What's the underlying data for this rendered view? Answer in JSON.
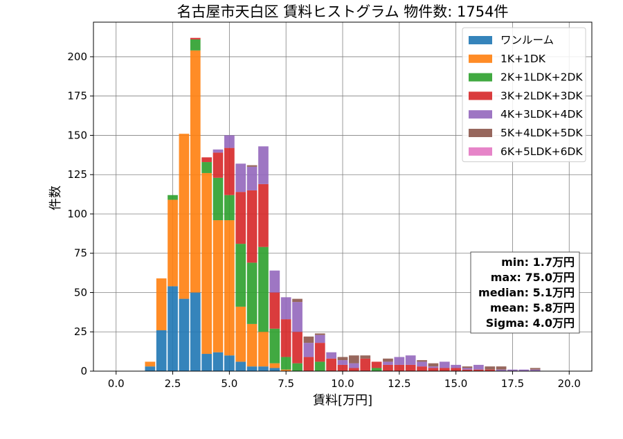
{
  "chart_data": {
    "type": "bar",
    "stacked": true,
    "title": "名古屋市天白区 賃料ヒストグラム 物件数: 1754件",
    "xlabel": "賃料[万円]",
    "ylabel": "件数",
    "xlim": [
      -1.0,
      21.0
    ],
    "ylim": [
      0,
      222
    ],
    "xticks": [
      "0.0",
      "2.5",
      "5.0",
      "7.5",
      "10.0",
      "12.5",
      "15.0",
      "17.5",
      "20.0"
    ],
    "yticks": [
      "0",
      "25",
      "50",
      "75",
      "100",
      "125",
      "150",
      "175",
      "200"
    ],
    "grid": true,
    "legend_position": "top-right",
    "bin_width": 0.5,
    "x": [
      1.5,
      2.0,
      2.5,
      3.0,
      3.5,
      4.0,
      4.5,
      5.0,
      5.5,
      6.0,
      6.5,
      7.0,
      7.5,
      8.0,
      8.5,
      9.0,
      9.5,
      10.0,
      10.5,
      11.0,
      11.5,
      12.0,
      12.5,
      13.0,
      13.5,
      14.0,
      14.5,
      15.0,
      15.5,
      16.0,
      16.5,
      17.0,
      17.5,
      18.0,
      18.5
    ],
    "series": [
      {
        "name": "ワンルーム",
        "color": "#1f77b4",
        "values": [
          3,
          26,
          54,
          46,
          50,
          11,
          12,
          10,
          6,
          3,
          3,
          2,
          0,
          0,
          0,
          0,
          0,
          0,
          0,
          0,
          0,
          0,
          0,
          0,
          0,
          0,
          0,
          0,
          0,
          0,
          0,
          0,
          0,
          0,
          0
        ]
      },
      {
        "name": "1K+1DK",
        "color": "#ff7f0e",
        "values": [
          3,
          33,
          55,
          105,
          154,
          115,
          84,
          86,
          35,
          27,
          22,
          3,
          1,
          0,
          0,
          0,
          0,
          0,
          0,
          0,
          0,
          0,
          0,
          0,
          0,
          0,
          0,
          0,
          0,
          0,
          0,
          0,
          0,
          0,
          0
        ]
      },
      {
        "name": "2K+1LDK+2DK",
        "color": "#2ca02c",
        "values": [
          0,
          0,
          3,
          0,
          7,
          7,
          27,
          16,
          40,
          39,
          54,
          22,
          8,
          5,
          0,
          6,
          0,
          0,
          0,
          0,
          2,
          0,
          0,
          0,
          0,
          0,
          0,
          0,
          0,
          0,
          0,
          0,
          0,
          0,
          0
        ]
      },
      {
        "name": "3K+2LDK+3DK",
        "color": "#d62728",
        "values": [
          0,
          0,
          0,
          0,
          1,
          3,
          16,
          30,
          33,
          46,
          40,
          23,
          24,
          20,
          9,
          12,
          8,
          4,
          2,
          8,
          4,
          4,
          4,
          4,
          3,
          2,
          2,
          2,
          1,
          1,
          1,
          0,
          0,
          0,
          0
        ]
      },
      {
        "name": "4K+3LDK+4DK",
        "color": "#9467bd",
        "values": [
          0,
          0,
          0,
          0,
          0,
          0,
          2,
          8,
          18,
          15,
          24,
          14,
          14,
          19,
          9,
          5,
          4,
          3,
          3,
          0,
          0,
          2,
          5,
          6,
          3,
          1,
          4,
          2,
          1,
          3,
          0,
          1,
          1,
          1,
          1
        ]
      },
      {
        "name": "5K+4LDK+5DK",
        "color": "#8c564b",
        "values": [
          0,
          0,
          0,
          0,
          0,
          0,
          0,
          0,
          0,
          1,
          0,
          0,
          0,
          2,
          4,
          1,
          0,
          2,
          5,
          2,
          0,
          2,
          0,
          0,
          1,
          2,
          0,
          0,
          1,
          0,
          2,
          2,
          0,
          0,
          1
        ]
      },
      {
        "name": "6K+5LDK+6DK",
        "color": "#e377c2",
        "values": [
          0,
          0,
          0,
          0,
          0,
          0,
          0,
          0,
          0,
          0,
          0,
          0,
          0,
          0,
          0,
          0,
          0,
          0,
          0,
          0,
          0,
          0,
          0,
          0,
          0,
          0,
          0,
          0,
          0,
          0,
          0,
          0,
          0,
          0,
          0
        ]
      }
    ],
    "stats": [
      "min: 1.7万円",
      "max: 75.0万円",
      "median: 5.1万円",
      "mean: 5.8万円",
      "Sigma: 4.0万円"
    ]
  }
}
